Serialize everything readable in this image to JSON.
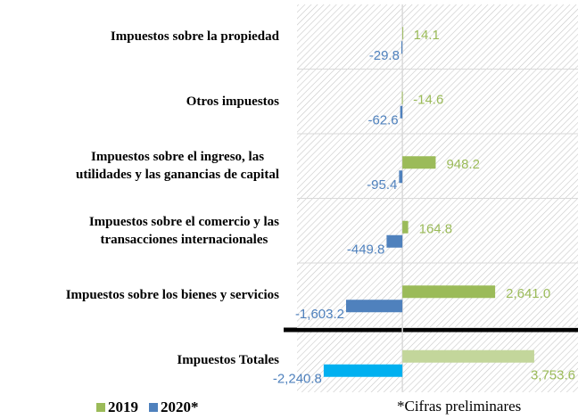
{
  "chart_data": {
    "type": "barh",
    "categories": [
      "Impuestos sobre la propiedad",
      "Otros impuestos",
      "Impuestos sobre el ingreso, las\nutilidades y las ganancias de capital",
      "Impuestos sobre el comercio y las\ntransacciones internacionales",
      "Impuestos sobre los bienes y servicios",
      "Impuestos Totales"
    ],
    "series": [
      {
        "name": "2019",
        "color": "#9bbb59",
        "colors": [
          "#9bbb59",
          "#9bbb59",
          "#9bbb59",
          "#9bbb59",
          "#9bbb59",
          "#c3d69b"
        ],
        "values": [
          14.1,
          -14.6,
          948.2,
          164.8,
          2641.0,
          3753.6
        ],
        "value_labels": [
          "14.1",
          "-14.6",
          "948.2",
          "164.8",
          "2,641.0",
          "3,753.6"
        ]
      },
      {
        "name": "2020*",
        "color": "#4f81bd",
        "colors": [
          "#4f81bd",
          "#4f81bd",
          "#4f81bd",
          "#4f81bd",
          "#4f81bd",
          "#00b0f0"
        ],
        "values": [
          -29.8,
          -62.6,
          -95.4,
          -449.8,
          -1603.2,
          -2240.8
        ],
        "value_labels": [
          "-29.8",
          "-62.6",
          "-95.4",
          "-449.8",
          "-1,603.2",
          "-2,240.8"
        ]
      }
    ],
    "xlim": [
      -3000,
      5000
    ],
    "annotation": "*Cifras preliminares",
    "legend": "bottom-left"
  }
}
